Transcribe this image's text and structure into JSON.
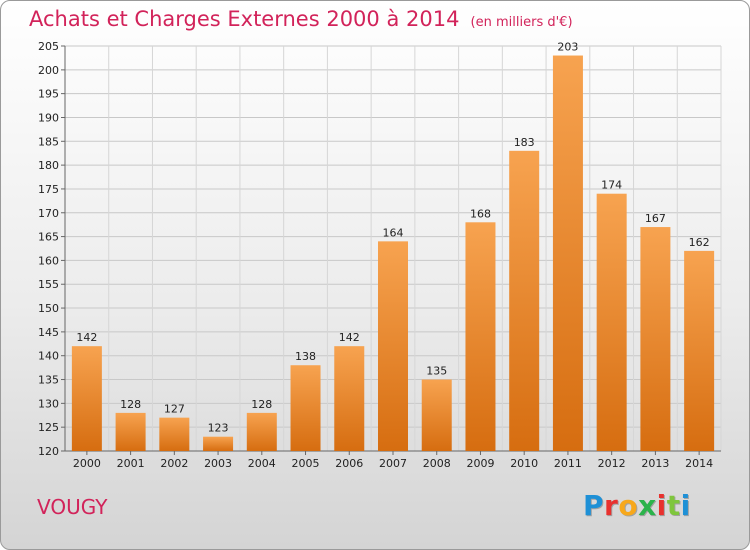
{
  "title": "Achats et Charges Externes 2000 à 2014",
  "unit": "(en milliers d'€)",
  "place": "VOUGY",
  "logo": {
    "text": "Proxiti",
    "letter_colors": [
      "#1e90d6",
      "#e8312e",
      "#f7a81b",
      "#2bb34b",
      "#e8312e",
      "#7fc63d",
      "#1e90d6"
    ]
  },
  "chart_data": {
    "type": "bar",
    "title": "Achats et Charges Externes 2000 à 2014",
    "subtitle": "(en milliers d'€)",
    "xlabel": "",
    "ylabel": "",
    "categories": [
      "2000",
      "2001",
      "2002",
      "2003",
      "2004",
      "2005",
      "2006",
      "2007",
      "2008",
      "2009",
      "2010",
      "2011",
      "2012",
      "2013",
      "2014"
    ],
    "values": [
      142,
      128,
      127,
      123,
      128,
      138,
      142,
      164,
      135,
      168,
      183,
      203,
      174,
      167,
      162
    ],
    "ylim": [
      120,
      205
    ],
    "yticks": [
      120,
      125,
      130,
      135,
      140,
      145,
      150,
      155,
      160,
      165,
      170,
      175,
      180,
      185,
      190,
      195,
      200,
      205
    ],
    "grid": true,
    "bar_color_light": "#f7a350",
    "bar_color_dark": "#d66d10",
    "legend": "none"
  }
}
